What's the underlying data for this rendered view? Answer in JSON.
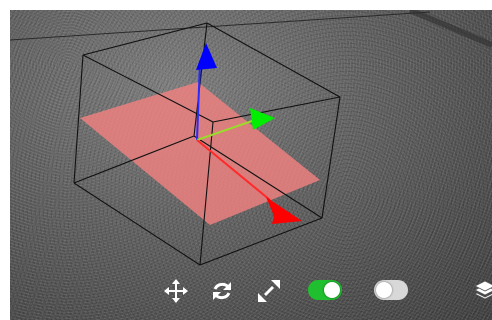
{
  "viewer": {
    "background": "#555555",
    "bounding_box_color": "#1a1a1a",
    "selection_plane_color": "#f08080",
    "axis_x_color": "#ff0000",
    "axis_y_color": "#00ff00",
    "axis_z_color": "#0000ff"
  },
  "toolbar": {
    "move_icon": "move-arrows-icon",
    "rotate_icon": "rotate-icon",
    "scale_icon": "scale-arrows-icon",
    "toggle_1": {
      "state": "on",
      "color": "#1fbf2f"
    },
    "toggle_2": {
      "state": "off",
      "color": "#cfcfcf"
    },
    "layers_icon": "layers-icon"
  }
}
